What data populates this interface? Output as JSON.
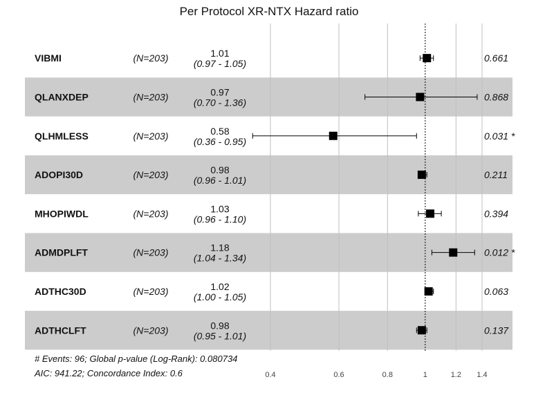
{
  "chart_data": {
    "type": "forest",
    "title": "Per Protocol XR-NTX Hazard ratio",
    "scale": "log",
    "xlim": [
      0.35,
      1.55
    ],
    "reference_line": 1,
    "x_ticks": [
      0.4,
      0.6,
      0.8,
      1,
      1.2,
      1.4
    ],
    "x_tick_labels": [
      "0.4",
      "0.6",
      "0.8",
      "1",
      "1.2",
      "1.4"
    ],
    "rows": [
      {
        "variable": "VIBMI",
        "n": "(N=203)",
        "hr": 1.01,
        "hr_label": "1.01",
        "lower": 0.97,
        "upper": 1.05,
        "ci_label": "(0.97 - 1.05)",
        "p": "0.661",
        "shaded": false
      },
      {
        "variable": "QLANXDEP",
        "n": "(N=203)",
        "hr": 0.97,
        "hr_label": "0.97",
        "lower": 0.7,
        "upper": 1.36,
        "ci_label": "(0.70 - 1.36)",
        "p": "0.868",
        "shaded": true
      },
      {
        "variable": "QLHMLESS",
        "n": "(N=203)",
        "hr": 0.58,
        "hr_label": "0.58",
        "lower": 0.36,
        "upper": 0.95,
        "ci_label": "(0.36 - 0.95)",
        "p": "0.031 *",
        "shaded": false
      },
      {
        "variable": "ADOPI30D",
        "n": "(N=203)",
        "hr": 0.98,
        "hr_label": "0.98",
        "lower": 0.96,
        "upper": 1.01,
        "ci_label": "(0.96 - 1.01)",
        "p": "0.211",
        "shaded": true
      },
      {
        "variable": "MHOPIWDL",
        "n": "(N=203)",
        "hr": 1.03,
        "hr_label": "1.03",
        "lower": 0.96,
        "upper": 1.1,
        "ci_label": "(0.96 - 1.10)",
        "p": "0.394",
        "shaded": false
      },
      {
        "variable": "ADMDPLFT",
        "n": "(N=203)",
        "hr": 1.18,
        "hr_label": "1.18",
        "lower": 1.04,
        "upper": 1.34,
        "ci_label": "(1.04 - 1.34)",
        "p": "0.012 *",
        "shaded": true
      },
      {
        "variable": "ADTHC30D",
        "n": "(N=203)",
        "hr": 1.02,
        "hr_label": "1.02",
        "lower": 1.0,
        "upper": 1.05,
        "ci_label": "(1.00 - 1.05)",
        "p": "0.063",
        "shaded": false
      },
      {
        "variable": "ADTHCLFT",
        "n": "(N=203)",
        "hr": 0.98,
        "hr_label": "0.98",
        "lower": 0.95,
        "upper": 1.01,
        "ci_label": "(0.95 - 1.01)",
        "p": "0.137",
        "shaded": true
      }
    ],
    "footer": [
      "# Events: 96; Global p-value (Log-Rank): 0.080734",
      "AIC: 941.22; Concordance Index: 0.6"
    ],
    "colors": {
      "shade": "#cccccc",
      "grid": "#bfbfbf",
      "marker": "#000000"
    }
  }
}
